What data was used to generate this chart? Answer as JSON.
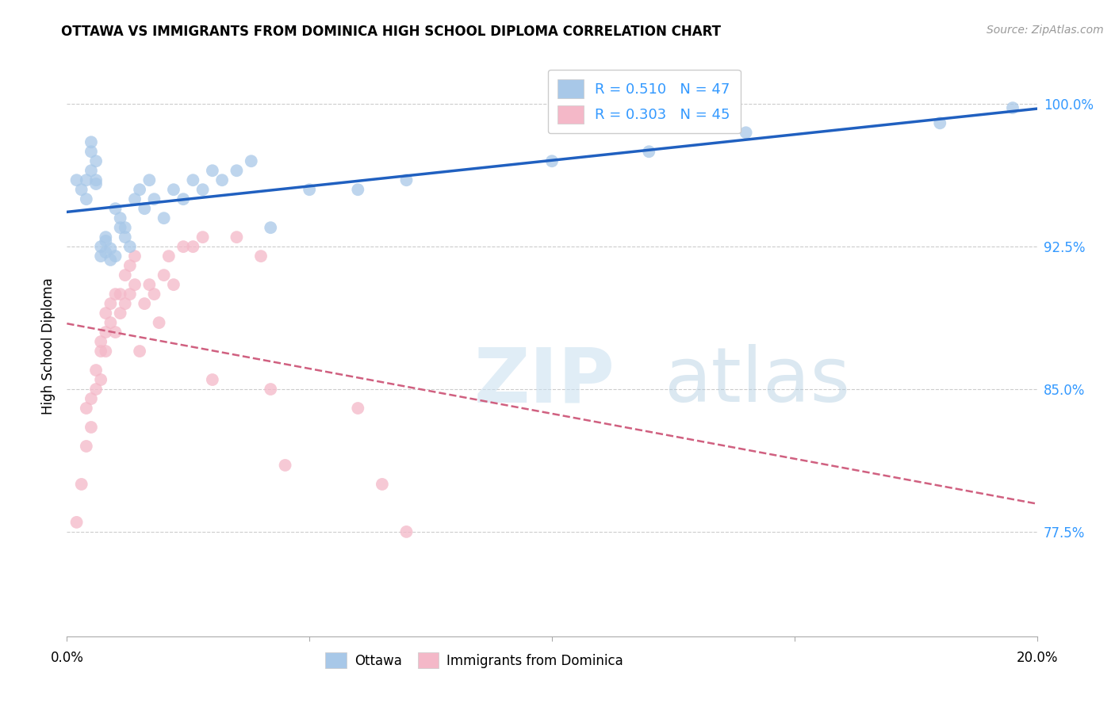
{
  "title": "OTTAWA VS IMMIGRANTS FROM DOMINICA HIGH SCHOOL DIPLOMA CORRELATION CHART",
  "source": "Source: ZipAtlas.com",
  "ylabel": "High School Diploma",
  "ytick_labels": [
    "100.0%",
    "92.5%",
    "85.0%",
    "77.5%"
  ],
  "ytick_values": [
    1.0,
    0.925,
    0.85,
    0.775
  ],
  "xlim": [
    0.0,
    0.2
  ],
  "ylim": [
    0.72,
    1.025
  ],
  "legend_r1": "R = 0.510",
  "legend_n1": "N = 47",
  "legend_r2": "R = 0.303",
  "legend_n2": "N = 45",
  "ottawa_color": "#a8c8e8",
  "dominica_color": "#f4b8c8",
  "trendline_ottawa_color": "#2060c0",
  "trendline_dominica_color": "#d06080",
  "ottawa_x": [
    0.002,
    0.003,
    0.004,
    0.004,
    0.005,
    0.005,
    0.005,
    0.006,
    0.006,
    0.006,
    0.007,
    0.007,
    0.008,
    0.008,
    0.008,
    0.009,
    0.009,
    0.01,
    0.01,
    0.011,
    0.011,
    0.012,
    0.012,
    0.013,
    0.014,
    0.015,
    0.016,
    0.017,
    0.018,
    0.02,
    0.022,
    0.024,
    0.026,
    0.028,
    0.03,
    0.032,
    0.035,
    0.038,
    0.042,
    0.05,
    0.06,
    0.07,
    0.1,
    0.12,
    0.14,
    0.18,
    0.195
  ],
  "ottawa_y": [
    0.96,
    0.955,
    0.95,
    0.96,
    0.965,
    0.975,
    0.98,
    0.96,
    0.958,
    0.97,
    0.92,
    0.925,
    0.922,
    0.93,
    0.928,
    0.918,
    0.924,
    0.92,
    0.945,
    0.935,
    0.94,
    0.93,
    0.935,
    0.925,
    0.95,
    0.955,
    0.945,
    0.96,
    0.95,
    0.94,
    0.955,
    0.95,
    0.96,
    0.955,
    0.965,
    0.96,
    0.965,
    0.97,
    0.935,
    0.955,
    0.955,
    0.96,
    0.97,
    0.975,
    0.985,
    0.99,
    0.998
  ],
  "dominica_x": [
    0.002,
    0.003,
    0.004,
    0.004,
    0.005,
    0.005,
    0.006,
    0.006,
    0.007,
    0.007,
    0.007,
    0.008,
    0.008,
    0.008,
    0.009,
    0.009,
    0.01,
    0.01,
    0.011,
    0.011,
    0.012,
    0.012,
    0.013,
    0.013,
    0.014,
    0.014,
    0.015,
    0.016,
    0.017,
    0.018,
    0.019,
    0.02,
    0.021,
    0.022,
    0.024,
    0.026,
    0.028,
    0.03,
    0.035,
    0.04,
    0.042,
    0.045,
    0.06,
    0.065,
    0.07
  ],
  "dominica_y": [
    0.78,
    0.8,
    0.82,
    0.84,
    0.83,
    0.845,
    0.85,
    0.86,
    0.855,
    0.87,
    0.875,
    0.87,
    0.88,
    0.89,
    0.885,
    0.895,
    0.88,
    0.9,
    0.89,
    0.9,
    0.895,
    0.91,
    0.9,
    0.915,
    0.905,
    0.92,
    0.87,
    0.895,
    0.905,
    0.9,
    0.885,
    0.91,
    0.92,
    0.905,
    0.925,
    0.925,
    0.93,
    0.855,
    0.93,
    0.92,
    0.85,
    0.81,
    0.84,
    0.8,
    0.775
  ]
}
